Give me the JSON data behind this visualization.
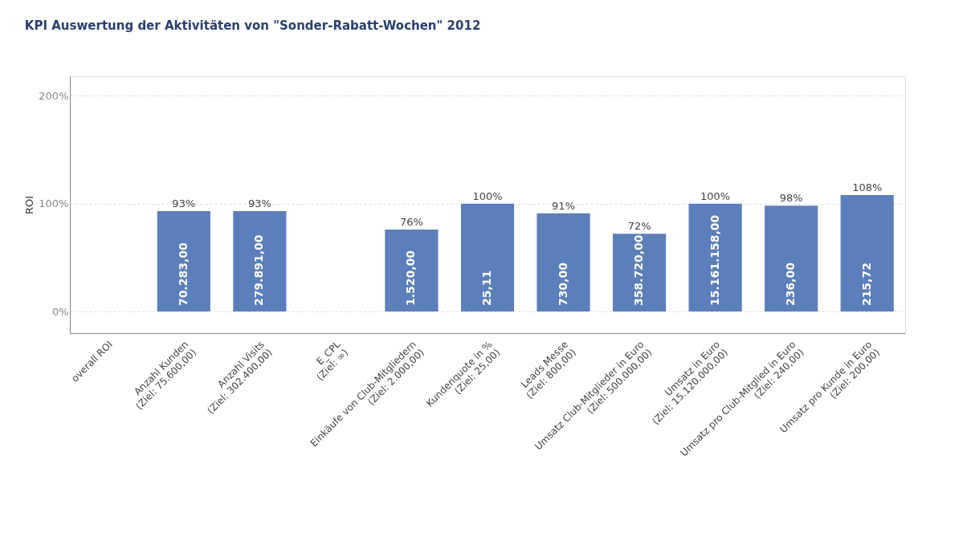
{
  "chart_data": {
    "type": "bar",
    "title": "KPI Auswertung der Aktivitäten von \"Sonder-Rabatt-Wochen\" 2012",
    "ylabel": "ROI",
    "categories": [
      "overall ROI",
      "Anzahl Kunden\n(Ziel: 75.600,00)",
      "Anzahl Visits\n(Ziel: 302.400,00)",
      "E_CPL\n(Ziel: ∞)",
      "Einkäufe von Club-Mitgliedern\n(Ziel: 2.000,00)",
      "Kundenquote in %\n(Ziel: 25,00)",
      "Leads Messe\n(Ziel: 800,00)",
      "Umsatz Club-Mitglieder in Euro\n(Ziel: 500.000,00)",
      "Umsatz in Euro\n(Ziel: 15.120.000,00)",
      "Umsatz pro Club-Mitglied in Euro\n(Ziel: 240,00)",
      "Umsatz pro Kunde in Euro\n(Ziel: 200,00)"
    ],
    "values": [
      null,
      93,
      93,
      null,
      76,
      100,
      91,
      72,
      100,
      98,
      108
    ],
    "value_labels": [
      null,
      "93%",
      "93%",
      null,
      "76%",
      "100%",
      "91%",
      "72%",
      "100%",
      "98%",
      "108%"
    ],
    "color": "#5b7fba",
    "ylim": [
      -20,
      218
    ],
    "yticks": [
      {
        "value": 0,
        "label": "0%"
      },
      {
        "value": 100,
        "label": "100%"
      },
      {
        "value": 200,
        "label": "200%"
      }
    ],
    "grid": "y",
    "annotations": [
      {
        "text": "70.283,00",
        "x": "Anzahl Kunden\n(Ziel: 75.600,00)",
        "y": 0
      },
      {
        "text": "279.891,00",
        "x": "Anzahl Visits\n(Ziel: 302.400,00)",
        "y": 0
      },
      {
        "text": "1.520,00",
        "x": "Einkäufe von Club-Mitgliedern\n(Ziel: 2.000,00)",
        "y": 0
      },
      {
        "text": "25,11",
        "x": "Kundenquote in %\n(Ziel: 25,00)",
        "y": 0
      },
      {
        "text": "730,00",
        "x": "Leads Messe\n(Ziel: 800,00)",
        "y": 0
      },
      {
        "text": "358.720,00",
        "x": "Umsatz Club-Mitglieder in Euro\n(Ziel: 500.000,00)",
        "y": 0
      },
      {
        "text": "15.161.158,00",
        "x": "Umsatz in Euro\n(Ziel: 15.120.000,00)",
        "y": 0
      },
      {
        "text": "236,00",
        "x": "Umsatz pro Club-Mitglied in Euro\n(Ziel: 240,00)",
        "y": 0
      },
      {
        "text": "215,72",
        "x": "Umsatz pro Kunde in Euro\n(Ziel: 200,00)",
        "y": 0
      }
    ]
  }
}
